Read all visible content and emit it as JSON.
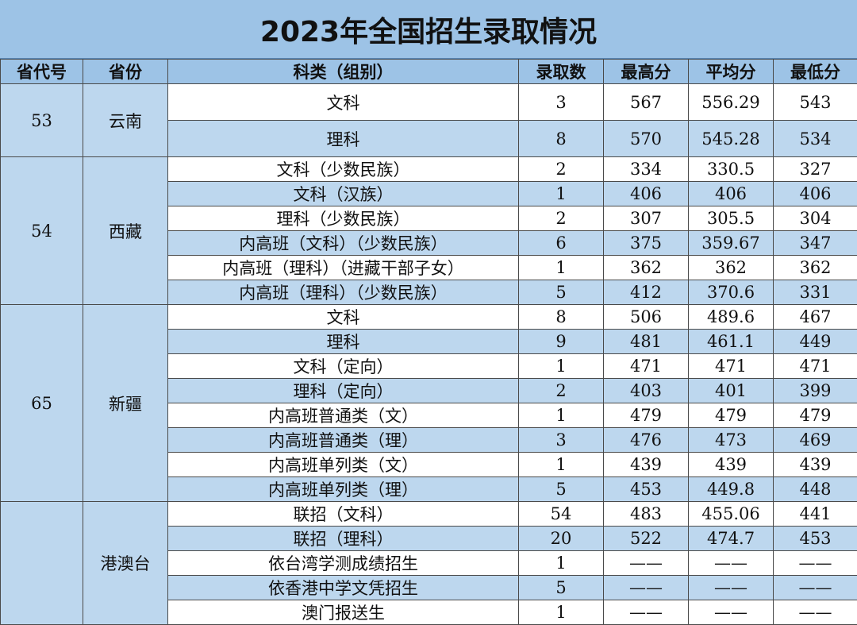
{
  "title": "2023年全国招生录取情况",
  "headers": [
    "省代号",
    "省份",
    "科类（组别）",
    "录取数",
    "最高分",
    "平均分",
    "最低分"
  ],
  "groups": [
    {
      "code": "53",
      "province": "云南",
      "rows": [
        {
          "category": "文科",
          "count": "3",
          "max": "567",
          "avg": "556.29",
          "min": "543"
        },
        {
          "category": "理科",
          "count": "8",
          "max": "570",
          "avg": "545.28",
          "min": "534"
        }
      ]
    },
    {
      "code": "54",
      "province": "西藏",
      "rows": [
        {
          "category": "文科（少数民族）",
          "count": "2",
          "max": "334",
          "avg": "330.5",
          "min": "327"
        },
        {
          "category": "文科（汉族）",
          "count": "1",
          "max": "406",
          "avg": "406",
          "min": "406"
        },
        {
          "category": "理科（少数民族）",
          "count": "2",
          "max": "307",
          "avg": "305.5",
          "min": "304"
        },
        {
          "category": "内高班（文科）（少数民族）",
          "count": "6",
          "max": "375",
          "avg": "359.67",
          "min": "347"
        },
        {
          "category": "内高班（理科）（进藏干部子女）",
          "count": "1",
          "max": "362",
          "avg": "362",
          "min": "362"
        },
        {
          "category": "内高班（理科）（少数民族）",
          "count": "5",
          "max": "412",
          "avg": "370.6",
          "min": "331"
        }
      ]
    },
    {
      "code": "65",
      "province": "新疆",
      "rows": [
        {
          "category": "文科",
          "count": "8",
          "max": "506",
          "avg": "489.6",
          "min": "467"
        },
        {
          "category": "理科",
          "count": "9",
          "max": "481",
          "avg": "461.1",
          "min": "449"
        },
        {
          "category": "文科（定向）",
          "count": "1",
          "max": "471",
          "avg": "471",
          "min": "471"
        },
        {
          "category": "理科（定向）",
          "count": "2",
          "max": "403",
          "avg": "401",
          "min": "399"
        },
        {
          "category": "内高班普通类（文）",
          "count": "1",
          "max": "479",
          "avg": "479",
          "min": "479"
        },
        {
          "category": "内高班普通类（理）",
          "count": "3",
          "max": "476",
          "avg": "473",
          "min": "469"
        },
        {
          "category": "内高班单列类（文）",
          "count": "1",
          "max": "439",
          "avg": "439",
          "min": "439"
        },
        {
          "category": "内高班单列类（理）",
          "count": "5",
          "max": "453",
          "avg": "449.8",
          "min": "448"
        }
      ]
    },
    {
      "code": "",
      "province": "港澳台",
      "rows": [
        {
          "category": "联招（文科）",
          "count": "54",
          "max": "483",
          "avg": "455.06",
          "min": "441"
        },
        {
          "category": "联招（理科）",
          "count": "20",
          "max": "522",
          "avg": "474.7",
          "min": "453"
        },
        {
          "category": "依台湾学测成绩招生",
          "count": "1",
          "max": "——",
          "avg": "——",
          "min": "——"
        },
        {
          "category": "依香港中学文凭招生",
          "count": "5",
          "max": "——",
          "avg": "——",
          "min": "——"
        },
        {
          "category": "澳门报送生",
          "count": "1",
          "max": "——",
          "avg": "——",
          "min": "——"
        }
      ]
    }
  ]
}
